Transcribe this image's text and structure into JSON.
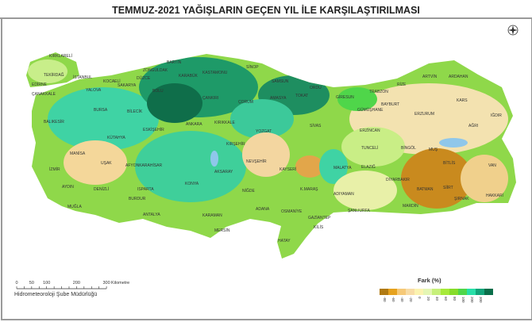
{
  "title": "TEMMUZ-2021 YAĞIŞLARIN GEÇEN YIL İLE KARŞILAŞTIRILMASI",
  "compass_icon": "north-arrow-icon",
  "scale_bar": {
    "ticks": [
      "0",
      "50",
      "100",
      "200",
      "300"
    ],
    "unit": "Kilometre"
  },
  "credit": "Hidrometeoroloji Şube Müdürlüğü",
  "legend": {
    "title": "Fark (%)",
    "labels": [
      "-80",
      "-60",
      "-40",
      "-20",
      "0",
      "20",
      "40",
      "60",
      "80",
      "100",
      "200",
      "300"
    ],
    "colors": [
      "#b07a12",
      "#e6a21e",
      "#f6c978",
      "#f8dca6",
      "#fbf3b0",
      "#e4f6b4",
      "#c6f07a",
      "#a6ea3a",
      "#86dc2a",
      "#4fd64a",
      "#28dfa8",
      "#12a57a",
      "#0a6e4a"
    ]
  },
  "cities": [
    "KIRKLARELİ",
    "EDİRNE",
    "TEKİRDAĞ",
    "İSTANBUL",
    "KOCAELİ",
    "SAKARYA",
    "DÜZCE",
    "ZONGULDAK",
    "BARTIN",
    "KASTAMONU",
    "SİNOP",
    "SAMSUN",
    "ÇANAKKALE",
    "BALIKESİR",
    "BURSA",
    "BİLECİK",
    "BOLU",
    "KARABÜK",
    "ÇANKIRI",
    "ÇORUM",
    "AMASYA",
    "TOKAT",
    "ORDU",
    "GİRESUN",
    "TRABZON",
    "RİZE",
    "ARTVİN",
    "ARDAHAN",
    "KARS",
    "IĞDIR",
    "AĞRI",
    "ERZURUM",
    "GÜMÜŞHANE",
    "BAYBURT",
    "ERZİNCAN",
    "SİVAS",
    "YOZGAT",
    "KIRIKKALE",
    "ANKARA",
    "ESKİŞEHİR",
    "KÜTAHYA",
    "MANİSA",
    "İZMİR",
    "AYDIN",
    "MUĞLA",
    "DENİZLİ",
    "UŞAK",
    "AFYONKARAHİSAR",
    "ISPARTA",
    "BURDUR",
    "ANTALYA",
    "KONYA",
    "KARAMAN",
    "MERSİN",
    "ADANA",
    "OSMANİYE",
    "HATAY",
    "KİLİS",
    "GAZİANTEP",
    "ŞANLIURFA",
    "ADIYAMAN",
    "MALATYA",
    "K.MARAŞ",
    "KAYSERİ",
    "NİĞDE",
    "AKSARAY",
    "NEVŞEHİR",
    "KIRŞEHİR",
    "TUNCELİ",
    "BİNGÖL",
    "ELAZIĞ",
    "DİYARBAKIR",
    "BATMAN",
    "MARDİN",
    "SİİRT",
    "ŞIRNAK",
    "HAKKARİ",
    "VAN",
    "BİTLİS",
    "MUŞ",
    "YALOVA"
  ]
}
